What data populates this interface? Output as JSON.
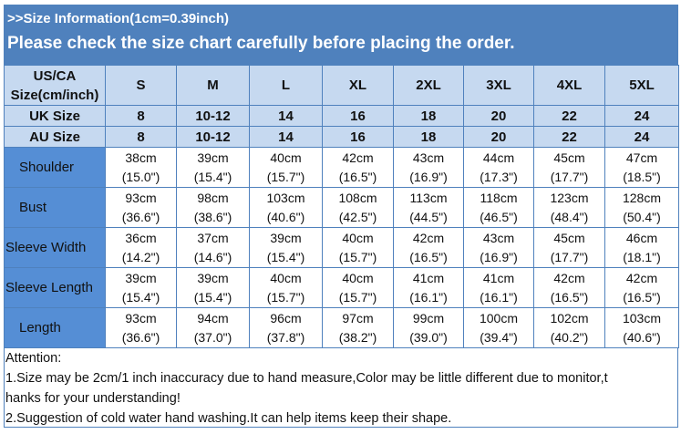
{
  "title": ">>Size Information(1cm=0.39inch)",
  "subtitle": "Please check the size chart carefully before placing the order.",
  "header": {
    "label": [
      "US/CA",
      "Size(cm/inch)"
    ],
    "sizes": [
      "S",
      "M",
      "L",
      "XL",
      "2XL",
      "3XL",
      "4XL",
      "5XL"
    ]
  },
  "uk": {
    "label": "UK Size",
    "values": [
      "8",
      "10-12",
      "14",
      "16",
      "18",
      "20",
      "22",
      "24"
    ]
  },
  "au": {
    "label": "AU Size",
    "values": [
      "8",
      "10-12",
      "14",
      "16",
      "18",
      "20",
      "22",
      "24"
    ]
  },
  "rows": [
    {
      "label": "Shoulder",
      "cm": [
        "38cm",
        "39cm",
        "40cm",
        "42cm",
        "43cm",
        "44cm",
        "45cm",
        "47cm"
      ],
      "in": [
        "(15.0\")",
        "(15.4\")",
        "(15.7\")",
        "(16.5\")",
        "(16.9\")",
        "(17.3\")",
        "(17.7\")",
        "(18.5\")"
      ]
    },
    {
      "label": "Bust",
      "cm": [
        "93cm",
        "98cm",
        "103cm",
        "108cm",
        "113cm",
        "118cm",
        "123cm",
        "128cm"
      ],
      "in": [
        "(36.6\")",
        "(38.6\")",
        "(40.6\")",
        "(42.5\")",
        "(44.5\")",
        "(46.5\")",
        "(48.4\")",
        "(50.4\")"
      ]
    },
    {
      "label": "Sleeve Width",
      "cm": [
        "36cm",
        "37cm",
        "39cm",
        "40cm",
        "42cm",
        "43cm",
        "45cm",
        "46cm"
      ],
      "in": [
        "(14.2\")",
        "(14.6\")",
        "(15.4\")",
        "(15.7\")",
        "(16.5\")",
        "(16.9\")",
        "(17.7\")",
        "(18.1\")"
      ]
    },
    {
      "label": "Sleeve Length",
      "cm": [
        "39cm",
        "39cm",
        "40cm",
        "40cm",
        "41cm",
        "41cm",
        "42cm",
        "42cm"
      ],
      "in": [
        "(15.4\")",
        "(15.4\")",
        "(15.7\")",
        "(15.7\")",
        "(16.1\")",
        "(16.1\")",
        "(16.5\")",
        "(16.5\")"
      ]
    },
    {
      "label": "Length",
      "cm": [
        "93cm",
        "94cm",
        "96cm",
        "97cm",
        "99cm",
        "100cm",
        "102cm",
        "103cm"
      ],
      "in": [
        "(36.6\")",
        "(37.0\")",
        "(37.8\")",
        "(38.2\")",
        "(39.0\")",
        "(39.4\")",
        "(40.2\")",
        "(40.6\")"
      ]
    }
  ],
  "attention": [
    "Attention:",
    "1.Size may be 2cm/1 inch inaccuracy due to hand measure,Color may be little different due to monitor,t",
    "hanks for your understanding!",
    "2.Suggestion of cold water hand washing.It can help items keep their shape."
  ],
  "colors": {
    "band": "#4f81bd",
    "header": "#c6d9f0",
    "label_col": "#558ed5"
  }
}
